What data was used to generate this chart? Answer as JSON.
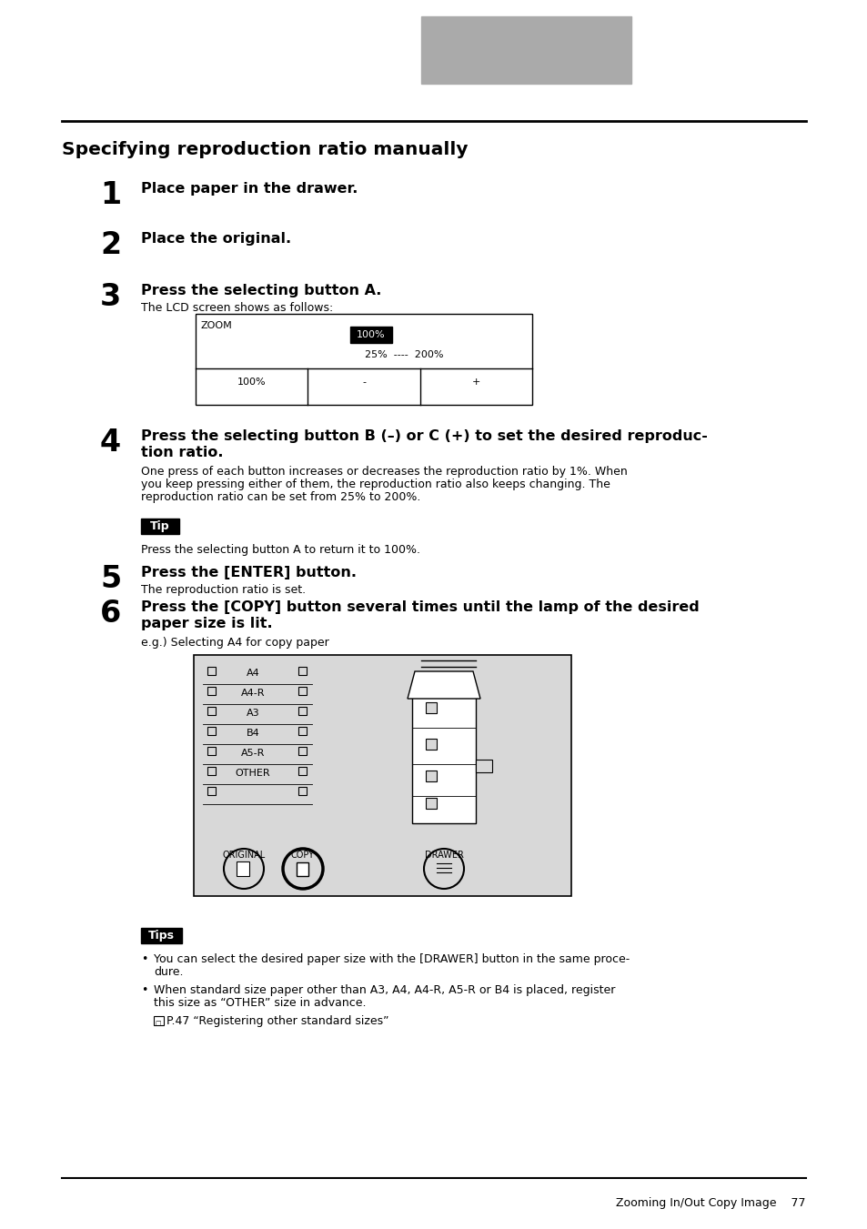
{
  "page_bg": "#ffffff",
  "header_rect_color": "#aaaaaa",
  "title": "Specifying reproduction ratio manually",
  "step1_num": "1",
  "step1_text": "Place paper in the drawer.",
  "step2_num": "2",
  "step2_text": "Place the original.",
  "step3_num": "3",
  "step3_text": "Press the selecting button A.",
  "step3_sub": "The LCD screen shows as follows:",
  "step4_num": "4",
  "step4_line1": "Press the selecting button B (–) or C (+) to set the desired reproduc-",
  "step4_line2": "tion ratio.",
  "step4_sub1": "One press of each button increases or decreases the reproduction ratio by 1%. When",
  "step4_sub2": "you keep pressing either of them, the reproduction ratio also keeps changing. The",
  "step4_sub3": "reproduction ratio can be set from 25% to 200%.",
  "tip_label": "Tip",
  "tip_text": "Press the selecting button A to return it to 100%.",
  "step5_num": "5",
  "step5_text": "Press the [ENTER] button.",
  "step5_sub": "The reproduction ratio is set.",
  "step6_num": "6",
  "step6_line1": "Press the [COPY] button several times until the lamp of the desired",
  "step6_line2": "paper size is lit.",
  "step6_sub": "e.g.) Selecting A4 for copy paper",
  "tips_label": "Tips",
  "tips_text1a": "You can select the desired paper size with the [DRAWER] button in the same proce-",
  "tips_text1b": "dure.",
  "tips_text2a": "When standard size paper other than A3, A4, A4-R, A5-R or B4 is placed, register",
  "tips_text2b": "this size as “OTHER” size in advance.",
  "tips_text3": "P.47 “Registering other standard sizes”",
  "footer_text": "Zooming In/Out Copy Image    77",
  "zoom_label": "ZOOM",
  "zoom_100": "100%",
  "zoom_range": "25%  ----  200%",
  "zoom_btn1": "100%",
  "zoom_btn2": "-",
  "zoom_btn3": "+",
  "panel_items": [
    "A4",
    "A4-R",
    "A3",
    "B4",
    "A5-R",
    "OTHER",
    ""
  ],
  "panel_labels": [
    "ORIGINAL",
    "COPY",
    "DRAWER"
  ]
}
